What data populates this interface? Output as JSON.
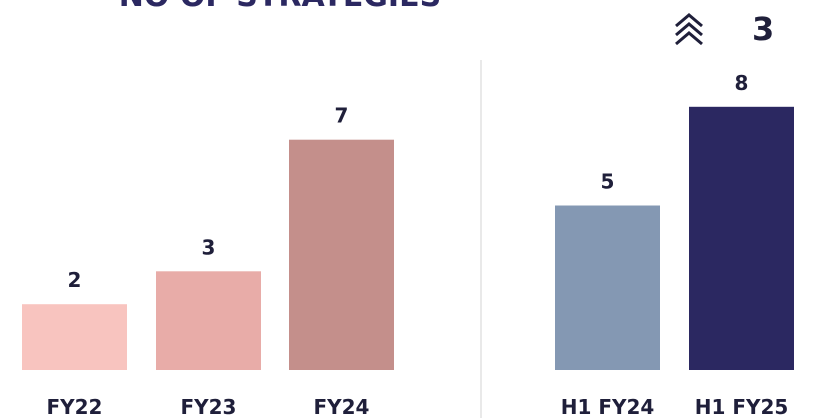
{
  "chart_data": [
    {
      "type": "bar",
      "title": "NO OF STRATEGIES",
      "categories": [
        "FY22",
        "FY23",
        "FY24"
      ],
      "values": [
        2,
        3,
        7
      ],
      "colors": [
        "#f8c4bf",
        "#e8aca8",
        "#c48f8b"
      ]
    },
    {
      "type": "bar",
      "annotation": "3",
      "categories": [
        "H1 FY24",
        "H1 FY25"
      ],
      "values": [
        5,
        8
      ],
      "colors": [
        "#8498b3",
        "#2b2861"
      ]
    }
  ]
}
